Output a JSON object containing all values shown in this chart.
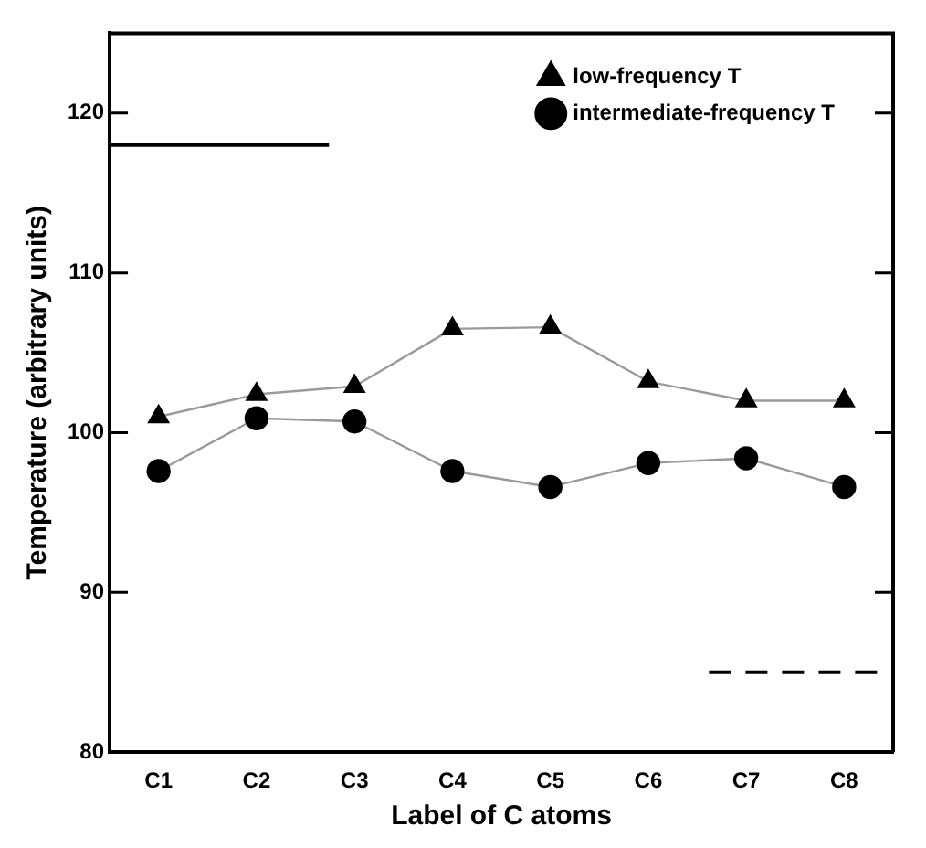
{
  "chart_data": {
    "type": "line",
    "xlabel": "Label of C atoms",
    "ylabel": "Temperature (arbitrary units)",
    "categories": [
      "C1",
      "C2",
      "C3",
      "C4",
      "C5",
      "C6",
      "C7",
      "C8"
    ],
    "series": [
      {
        "name": "low-frequency T",
        "color": "#000000",
        "marker": "triangle",
        "values": [
          101,
          102.4,
          102.9,
          106.5,
          106.6,
          103.2,
          102,
          102
        ]
      },
      {
        "name": "intermediate-frequency T",
        "color": "#000000",
        "marker": "circle",
        "values": [
          97.6,
          100.9,
          100.7,
          97.6,
          96.6,
          98.1,
          98.4,
          96.6
        ]
      }
    ],
    "ylim": [
      80,
      125
    ],
    "yticks": [
      80,
      90,
      100,
      110,
      120
    ],
    "grid": false,
    "legend": "top right",
    "ref_lines": [
      {
        "axis": "y",
        "value": 118,
        "line_style": "solid",
        "color": "#000000"
      },
      {
        "axis": "y",
        "value": 85,
        "line_style": "dashed",
        "color": "#000000"
      }
    ]
  }
}
